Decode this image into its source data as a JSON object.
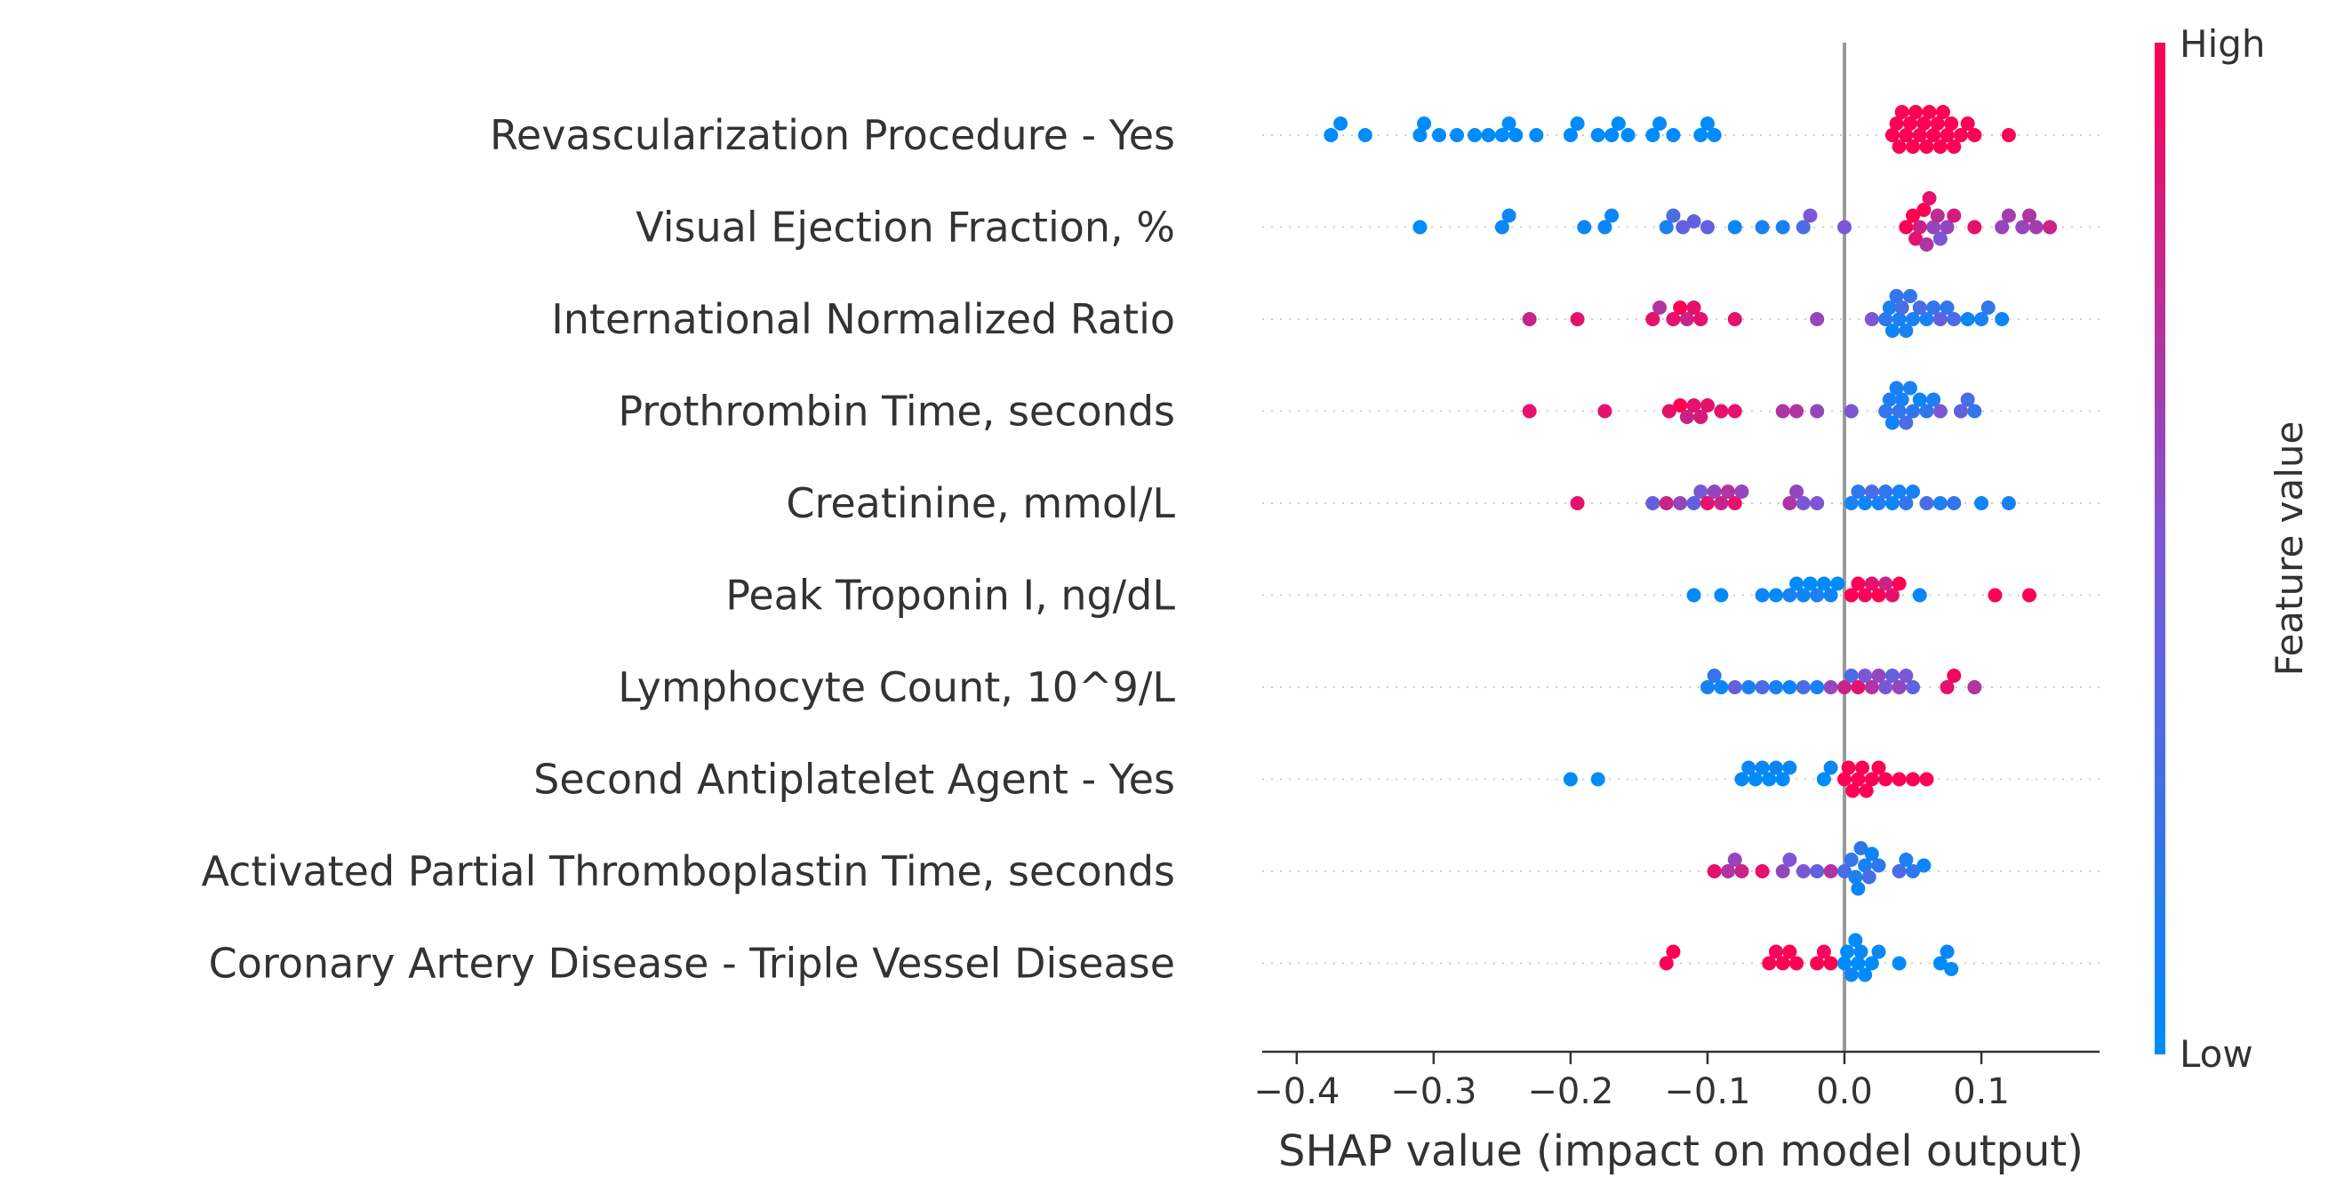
{
  "chart_data": {
    "type": "scatter",
    "subtype": "shap-beeswarm",
    "xlabel": "SHAP value (impact on model output)",
    "xlim": [
      -0.42,
      0.185
    ],
    "xticks": [
      -0.4,
      -0.3,
      -0.2,
      -0.1,
      0.0,
      0.1
    ],
    "xtick_labels": [
      "−0.4",
      "−0.3",
      "−0.2",
      "−0.1",
      "0.0",
      "0.1"
    ],
    "zero_line": true,
    "colorbar": {
      "label": "Feature value",
      "high_label": "High",
      "low_label": "Low",
      "colors": [
        "#008bfb",
        "#ff0052"
      ]
    },
    "features": [
      {
        "name": "Revascularization Procedure - Yes",
        "points": [
          [
            -0.375,
            0
          ],
          [
            -0.368,
            0
          ],
          [
            -0.35,
            0
          ],
          [
            -0.31,
            0
          ],
          [
            -0.307,
            0
          ],
          [
            -0.296,
            0
          ],
          [
            -0.283,
            0
          ],
          [
            -0.27,
            0
          ],
          [
            -0.26,
            0
          ],
          [
            -0.25,
            0
          ],
          [
            -0.245,
            0
          ],
          [
            -0.24,
            0
          ],
          [
            -0.225,
            0
          ],
          [
            -0.2,
            0
          ],
          [
            -0.195,
            0
          ],
          [
            -0.18,
            0
          ],
          [
            -0.17,
            0
          ],
          [
            -0.165,
            0
          ],
          [
            -0.158,
            0
          ],
          [
            -0.14,
            0
          ],
          [
            -0.135,
            0
          ],
          [
            -0.125,
            0
          ],
          [
            -0.105,
            0
          ],
          [
            -0.1,
            0
          ],
          [
            -0.095,
            0
          ],
          [
            0.035,
            1
          ],
          [
            0.038,
            1
          ],
          [
            0.04,
            1
          ],
          [
            0.042,
            1
          ],
          [
            0.045,
            1
          ],
          [
            0.048,
            1
          ],
          [
            0.05,
            1
          ],
          [
            0.052,
            1
          ],
          [
            0.055,
            1
          ],
          [
            0.058,
            1
          ],
          [
            0.06,
            1
          ],
          [
            0.062,
            1
          ],
          [
            0.065,
            1
          ],
          [
            0.068,
            1
          ],
          [
            0.07,
            1
          ],
          [
            0.072,
            1
          ],
          [
            0.075,
            1
          ],
          [
            0.078,
            1
          ],
          [
            0.08,
            1
          ],
          [
            0.085,
            1
          ],
          [
            0.09,
            1
          ],
          [
            0.095,
            1
          ],
          [
            0.12,
            1
          ]
        ]
      },
      {
        "name": "Visual Ejection Fraction, %",
        "points": [
          [
            -0.31,
            0
          ],
          [
            -0.25,
            0.05
          ],
          [
            -0.245,
            0.05
          ],
          [
            -0.19,
            0.05
          ],
          [
            -0.175,
            0.05
          ],
          [
            -0.17,
            0.05
          ],
          [
            -0.13,
            0.1
          ],
          [
            -0.125,
            0.3
          ],
          [
            -0.118,
            0.4
          ],
          [
            -0.11,
            0.4
          ],
          [
            -0.1,
            0.4
          ],
          [
            -0.08,
            0.05
          ],
          [
            -0.06,
            0.1
          ],
          [
            -0.045,
            0.1
          ],
          [
            -0.03,
            0.3
          ],
          [
            -0.025,
            0.5
          ],
          [
            0.0,
            0.5
          ],
          [
            0.045,
            1
          ],
          [
            0.05,
            1
          ],
          [
            0.052,
            0.9
          ],
          [
            0.055,
            0.8
          ],
          [
            0.058,
            1
          ],
          [
            0.06,
            0.7
          ],
          [
            0.062,
            0.9
          ],
          [
            0.065,
            0.6
          ],
          [
            0.068,
            0.75
          ],
          [
            0.07,
            0.5
          ],
          [
            0.075,
            0.6
          ],
          [
            0.08,
            0.85
          ],
          [
            0.095,
            0.9
          ],
          [
            0.115,
            0.6
          ],
          [
            0.12,
            0.65
          ],
          [
            0.13,
            0.6
          ],
          [
            0.135,
            0.7
          ],
          [
            0.14,
            0.65
          ],
          [
            0.15,
            0.8
          ]
        ]
      },
      {
        "name": "International Normalized Ratio",
        "points": [
          [
            -0.23,
            0.8
          ],
          [
            -0.195,
            0.9
          ],
          [
            -0.14,
            0.9
          ],
          [
            -0.135,
            0.7
          ],
          [
            -0.125,
            0.9
          ],
          [
            -0.12,
            1
          ],
          [
            -0.115,
            0.8
          ],
          [
            -0.11,
            0.9
          ],
          [
            -0.105,
            0.9
          ],
          [
            -0.08,
            0.9
          ],
          [
            -0.02,
            0.6
          ],
          [
            0.02,
            0.5
          ],
          [
            0.03,
            0.2
          ],
          [
            0.033,
            0.1
          ],
          [
            0.035,
            0.05
          ],
          [
            0.038,
            0.2
          ],
          [
            0.04,
            0.1
          ],
          [
            0.042,
            0.3
          ],
          [
            0.045,
            0.1
          ],
          [
            0.048,
            0.2
          ],
          [
            0.05,
            0.1
          ],
          [
            0.055,
            0.3
          ],
          [
            0.06,
            0.1
          ],
          [
            0.065,
            0.2
          ],
          [
            0.07,
            0.4
          ],
          [
            0.075,
            0.2
          ],
          [
            0.08,
            0.3
          ],
          [
            0.09,
            0.05
          ],
          [
            0.1,
            0.1
          ],
          [
            0.105,
            0.2
          ],
          [
            0.115,
            0.05
          ]
        ]
      },
      {
        "name": "Prothrombin Time, seconds",
        "points": [
          [
            -0.23,
            0.9
          ],
          [
            -0.175,
            0.9
          ],
          [
            -0.128,
            0.9
          ],
          [
            -0.12,
            1
          ],
          [
            -0.115,
            0.8
          ],
          [
            -0.11,
            0.9
          ],
          [
            -0.105,
            0.85
          ],
          [
            -0.1,
            0.9
          ],
          [
            -0.09,
            0.9
          ],
          [
            -0.08,
            0.9
          ],
          [
            -0.045,
            0.7
          ],
          [
            -0.035,
            0.7
          ],
          [
            -0.02,
            0.6
          ],
          [
            0.005,
            0.5
          ],
          [
            0.03,
            0.2
          ],
          [
            0.033,
            0.1
          ],
          [
            0.035,
            0.05
          ],
          [
            0.038,
            0.1
          ],
          [
            0.04,
            0.2
          ],
          [
            0.042,
            0.1
          ],
          [
            0.045,
            0.3
          ],
          [
            0.048,
            0.1
          ],
          [
            0.05,
            0.2
          ],
          [
            0.055,
            0.05
          ],
          [
            0.06,
            0.2
          ],
          [
            0.065,
            0.1
          ],
          [
            0.07,
            0.5
          ],
          [
            0.085,
            0.4
          ],
          [
            0.09,
            0.3
          ],
          [
            0.095,
            0.2
          ]
        ]
      },
      {
        "name": "Creatinine, mmol/L",
        "points": [
          [
            -0.195,
            0.9
          ],
          [
            -0.14,
            0.4
          ],
          [
            -0.13,
            0.8
          ],
          [
            -0.12,
            0.6
          ],
          [
            -0.11,
            0.4
          ],
          [
            -0.105,
            0.5
          ],
          [
            -0.1,
            0.9
          ],
          [
            -0.095,
            0.6
          ],
          [
            -0.09,
            0.8
          ],
          [
            -0.085,
            0.7
          ],
          [
            -0.08,
            0.9
          ],
          [
            -0.075,
            0.6
          ],
          [
            -0.04,
            0.7
          ],
          [
            -0.035,
            0.6
          ],
          [
            -0.03,
            0.5
          ],
          [
            -0.02,
            0.5
          ],
          [
            0.005,
            0.1
          ],
          [
            0.01,
            0.2
          ],
          [
            0.015,
            0.05
          ],
          [
            0.02,
            0.3
          ],
          [
            0.025,
            0.1
          ],
          [
            0.03,
            0.2
          ],
          [
            0.035,
            0.05
          ],
          [
            0.04,
            0.1
          ],
          [
            0.045,
            0.2
          ],
          [
            0.05,
            0.1
          ],
          [
            0.06,
            0.3
          ],
          [
            0.07,
            0.1
          ],
          [
            0.08,
            0.2
          ],
          [
            0.1,
            0.05
          ],
          [
            0.12,
            0.1
          ]
        ]
      },
      {
        "name": "Peak Troponin I, ng/dL",
        "points": [
          [
            -0.11,
            0
          ],
          [
            -0.09,
            0
          ],
          [
            -0.06,
            0.05
          ],
          [
            -0.05,
            0
          ],
          [
            -0.04,
            0.1
          ],
          [
            -0.035,
            0
          ],
          [
            -0.03,
            0.05
          ],
          [
            -0.025,
            0
          ],
          [
            -0.02,
            0.1
          ],
          [
            -0.015,
            0
          ],
          [
            -0.01,
            0.05
          ],
          [
            -0.005,
            0
          ],
          [
            0.005,
            1
          ],
          [
            0.01,
            1
          ],
          [
            0.015,
            0.95
          ],
          [
            0.02,
            0.9
          ],
          [
            0.025,
            1
          ],
          [
            0.03,
            0.8
          ],
          [
            0.035,
            0.9
          ],
          [
            0.04,
            1
          ],
          [
            0.055,
            0.05
          ],
          [
            0.11,
            1
          ],
          [
            0.135,
            1
          ]
        ]
      },
      {
        "name": "Lymphocyte Count, 10^9/L",
        "points": [
          [
            -0.1,
            0.1
          ],
          [
            -0.095,
            0.2
          ],
          [
            -0.09,
            0.05
          ],
          [
            -0.08,
            0.4
          ],
          [
            -0.07,
            0.1
          ],
          [
            -0.06,
            0.3
          ],
          [
            -0.05,
            0.1
          ],
          [
            -0.04,
            0.05
          ],
          [
            -0.03,
            0.3
          ],
          [
            -0.02,
            0.1
          ],
          [
            -0.01,
            0.6
          ],
          [
            0.0,
            0.8
          ],
          [
            0.005,
            0.3
          ],
          [
            0.01,
            0.9
          ],
          [
            0.015,
            0.5
          ],
          [
            0.02,
            0.7
          ],
          [
            0.025,
            0.6
          ],
          [
            0.03,
            0.5
          ],
          [
            0.035,
            0.4
          ],
          [
            0.04,
            0.6
          ],
          [
            0.045,
            0.5
          ],
          [
            0.05,
            0.4
          ],
          [
            0.075,
            0.9
          ],
          [
            0.08,
            0.95
          ],
          [
            0.095,
            0.7
          ]
        ]
      },
      {
        "name": "Second Antiplatelet Agent - Yes",
        "points": [
          [
            -0.2,
            0
          ],
          [
            -0.18,
            0
          ],
          [
            -0.075,
            0
          ],
          [
            -0.07,
            0.05
          ],
          [
            -0.065,
            0
          ],
          [
            -0.06,
            0.05
          ],
          [
            -0.055,
            0
          ],
          [
            -0.05,
            0.05
          ],
          [
            -0.045,
            0
          ],
          [
            -0.04,
            0.05
          ],
          [
            -0.015,
            0
          ],
          [
            -0.01,
            0.05
          ],
          [
            0.0,
            1
          ],
          [
            0.003,
            1
          ],
          [
            0.006,
            1
          ],
          [
            0.01,
            1
          ],
          [
            0.013,
            1
          ],
          [
            0.016,
            1
          ],
          [
            0.02,
            1
          ],
          [
            0.025,
            1
          ],
          [
            0.03,
            1
          ],
          [
            0.04,
            1
          ],
          [
            0.05,
            1
          ],
          [
            0.06,
            1
          ]
        ]
      },
      {
        "name": "Activated Partial Thromboplastin Time, seconds",
        "points": [
          [
            -0.095,
            0.9
          ],
          [
            -0.085,
            0.7
          ],
          [
            -0.08,
            0.6
          ],
          [
            -0.075,
            0.8
          ],
          [
            -0.06,
            0.9
          ],
          [
            -0.045,
            0.6
          ],
          [
            -0.04,
            0.5
          ],
          [
            -0.03,
            0.5
          ],
          [
            -0.02,
            0.4
          ],
          [
            -0.01,
            0.7
          ],
          [
            0.0,
            0.3
          ],
          [
            0.005,
            0.2
          ],
          [
            0.008,
            0.1
          ],
          [
            0.01,
            0.05
          ],
          [
            0.012,
            0.2
          ],
          [
            0.015,
            0.1
          ],
          [
            0.018,
            0.3
          ],
          [
            0.02,
            0.05
          ],
          [
            0.025,
            0.2
          ],
          [
            0.04,
            0.3
          ],
          [
            0.045,
            0.1
          ],
          [
            0.05,
            0.2
          ],
          [
            0.058,
            0.05
          ]
        ]
      },
      {
        "name": "Coronary Artery Disease - Triple Vessel Disease",
        "points": [
          [
            -0.13,
            1
          ],
          [
            -0.125,
            1
          ],
          [
            -0.055,
            1
          ],
          [
            -0.05,
            0.95
          ],
          [
            -0.045,
            1
          ],
          [
            -0.04,
            1
          ],
          [
            -0.035,
            1
          ],
          [
            -0.02,
            1
          ],
          [
            -0.015,
            0.95
          ],
          [
            -0.01,
            1
          ],
          [
            0.0,
            0
          ],
          [
            0.002,
            0
          ],
          [
            0.005,
            0.05
          ],
          [
            0.008,
            0
          ],
          [
            0.01,
            0
          ],
          [
            0.012,
            0.05
          ],
          [
            0.015,
            0
          ],
          [
            0.02,
            0
          ],
          [
            0.025,
            0.05
          ],
          [
            0.04,
            0
          ],
          [
            0.07,
            0
          ],
          [
            0.075,
            0.05
          ],
          [
            0.078,
            0
          ]
        ]
      }
    ]
  }
}
